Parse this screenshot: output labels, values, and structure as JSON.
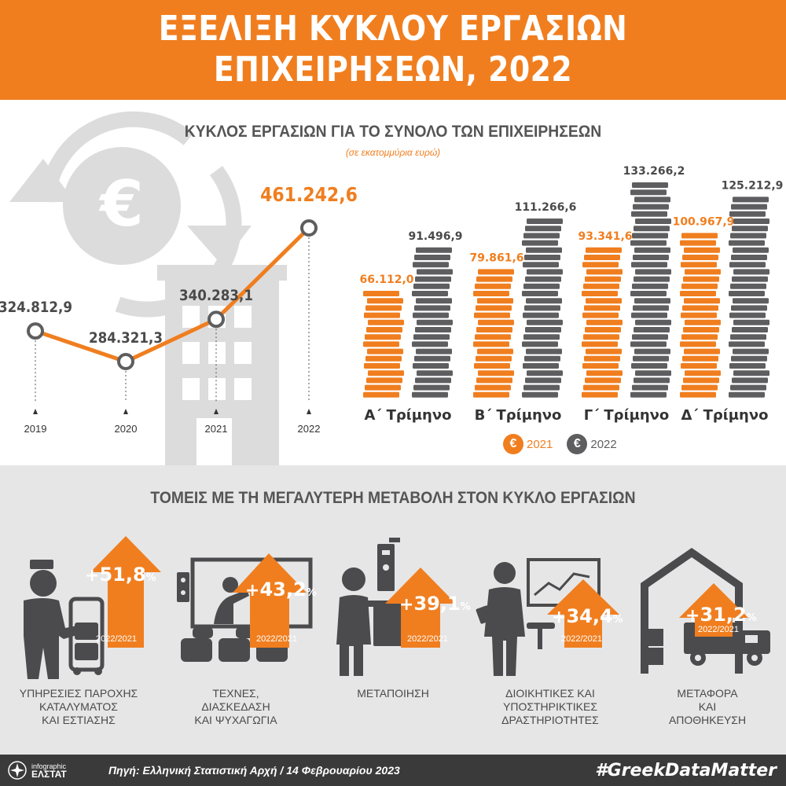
{
  "header": {
    "title_line1": "ΕΞΕΛΙΞΗ ΚΥΚΛΟΥ ΕΡΓΑΣΙΩΝ",
    "title_line2": "ΕΠΙΧΕΙΡΗΣΕΩΝ, 2022"
  },
  "top": {
    "title": "ΚΥΚΛΟΣ ΕΡΓΑΣΙΩΝ ΓΙΑ ΤΟ ΣΥΝΟΛΟ ΤΩΝ ΕΠΙΧΕΙΡΗΣΕΩΝ",
    "subtitle": "(σε εκατομμύρια ευρώ)"
  },
  "colors": {
    "orange": "#f07e1f",
    "gray": "#5e5e60",
    "light_gray": "#e6e6e7",
    "dark": "#3a3a3a"
  },
  "chart_data": [
    {
      "type": "line",
      "x": [
        "2019",
        "2020",
        "2021",
        "2022"
      ],
      "values": [
        324812.9,
        284321.3,
        340283.1,
        461242.6
      ],
      "labels": [
        "324.812,9",
        "284.321,3",
        "340.283,1",
        "461.242,6"
      ],
      "highlight_last": true
    },
    {
      "type": "bar",
      "categories": [
        "Α΄ Τρίμηνο",
        "Β΄ Τρίμηνο",
        "Γ΄ Τρίμηνο",
        "Δ΄ Τρίμηνο"
      ],
      "series": [
        {
          "name": "2021",
          "values": [
            66112.0,
            79861.6,
            93341.6,
            100967.9
          ],
          "labels": [
            "66.112,0",
            "79.861,6",
            "93.341,6",
            "100.967,9"
          ],
          "color": "#f07e1f"
        },
        {
          "name": "2022",
          "values": [
            91496.9,
            111266.6,
            133266.2,
            125212.9
          ],
          "labels": [
            "91.496,9",
            "111.266,6",
            "133.266,2",
            "125.212,9"
          ],
          "color": "#5e5e60"
        }
      ],
      "style": "stacked-coins"
    }
  ],
  "legend": {
    "symbol": "€",
    "items": [
      "2021",
      "2022"
    ]
  },
  "bottom": {
    "title": "ΤΟΜΕΙΣ ΜΕ ΤΗ ΜΕΓΑΛΥΤΕΡΗ ΜΕΤΑΒΟΛΗ ΣΤΟΝ ΚΥΚΛΟ ΕΡΓΑΣΙΩΝ",
    "period": "2022/2021",
    "sectors": [
      {
        "label": "ΥΠΗΡΕΣΙΕΣ ΠΑΡΟΧΗΣ\nΚΑΤΑΛΥΜΑΤΟΣ\nΚΑΙ ΕΣΤΙΑΣΗΣ",
        "pct": "51,8",
        "value": 51.8,
        "icon": "hotel-porter-icon"
      },
      {
        "label": "ΤΕΧΝΕΣ,\nΔΙΑΣΚΕΔΑΣΗ\nΚΑΙ ΨΥΧΑΓΩΓΙΑ",
        "pct": "43,2",
        "value": 43.2,
        "icon": "theatre-screen-icon"
      },
      {
        "label": "ΜΕΤΑΠΟΙΗΣΗ",
        "pct": "39,1",
        "value": 39.1,
        "icon": "factory-worker-icon"
      },
      {
        "label": "ΔΙΟΙΚΗΤΙΚΕΣ ΚΑΙ\nΥΠΟΣΤΗΡΙΚΤΙΚΕΣ\nΔΡΑΣΤΗΡΙΟΤΗΤΕΣ",
        "pct": "34,4",
        "value": 34.4,
        "icon": "office-worker-icon"
      },
      {
        "label": "ΜΕΤΑΦΟΡΑ\nΚΑΙ\nΑΠΟΘΗΚΕΥΣΗ",
        "pct": "31,2",
        "value": 31.2,
        "icon": "warehouse-truck-icon"
      }
    ]
  },
  "footer": {
    "logo_line1": "infographic",
    "logo_line2": "ΕΛΣΤΑΤ",
    "source": "Πηγή: Ελληνική Στατιστική Αρχή  / 14 Φεβρουαρίου 2023",
    "hashtag": "#GreekDataMatter"
  }
}
